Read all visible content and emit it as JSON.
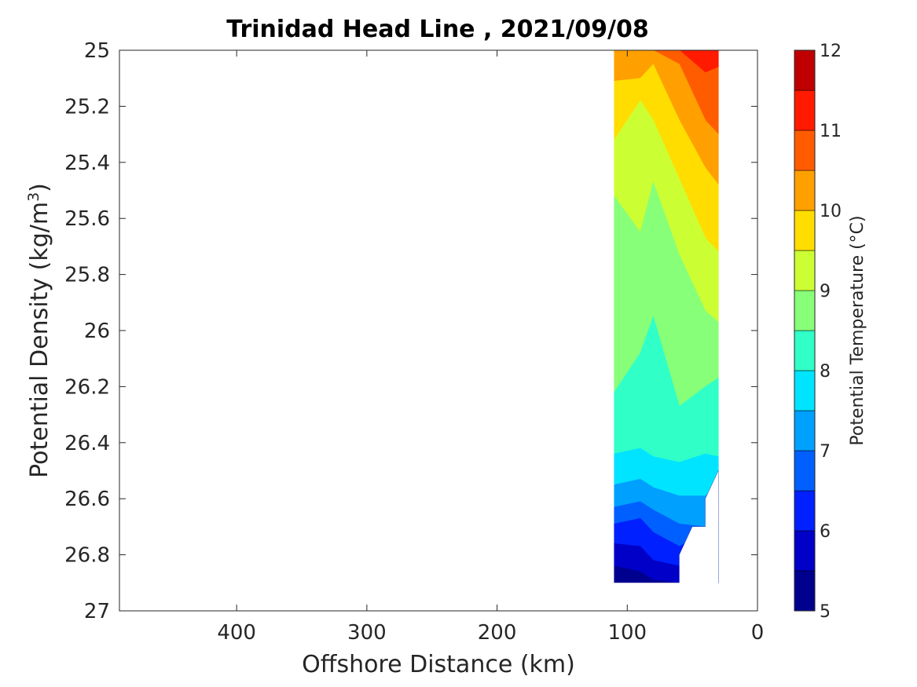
{
  "chart_data": {
    "type": "filled-contour",
    "title": "Trinidad Head Line , 2021/09/08",
    "xlabel": "Offshore Distance (km)",
    "ylabel": "Potential Density (kg/m",
    "ylabel_sup": "3",
    "ylabel_close": ")",
    "xlim": [
      490,
      0
    ],
    "ylim": [
      25,
      27
    ],
    "y_reversed": true,
    "x_ticks": [
      "400",
      "300",
      "200",
      "100",
      "0"
    ],
    "x_tick_values": [
      400,
      300,
      200,
      100,
      0
    ],
    "y_ticks": [
      "25",
      "25.2",
      "25.4",
      "25.6",
      "25.8",
      "26",
      "26.2",
      "26.4",
      "26.6",
      "26.8",
      "27"
    ],
    "y_tick_values": [
      25,
      25.2,
      25.4,
      25.6,
      25.8,
      26,
      26.2,
      26.4,
      26.6,
      26.8,
      27
    ],
    "colorbar": {
      "label": "Potential Temperature (°C)",
      "range": [
        5,
        12
      ],
      "step": 0.5,
      "ticks": [
        "5",
        "6",
        "7",
        "8",
        "9",
        "10",
        "11",
        "12"
      ],
      "tick_values": [
        5,
        6,
        7,
        8,
        9,
        10,
        11,
        12
      ],
      "colors": [
        "#00008f",
        "#0000c8",
        "#0020ff",
        "#0060ff",
        "#00a0ff",
        "#00e4ff",
        "#30ffc8",
        "#88ff78",
        "#ccff33",
        "#ffdd00",
        "#ffa000",
        "#ff5c00",
        "#ff1a00",
        "#c00000"
      ]
    },
    "stations_km": [
      110,
      90,
      80,
      60,
      40,
      30
    ],
    "isotherms": [
      {
        "level": 5.5,
        "y": [
          26.84,
          26.86,
          26.89,
          26.9,
          26.9,
          26.9
        ]
      },
      {
        "level": 6.0,
        "y": [
          26.76,
          26.77,
          26.82,
          26.84,
          26.9,
          26.9
        ]
      },
      {
        "level": 6.5,
        "y": [
          26.69,
          26.67,
          26.72,
          26.77,
          26.72,
          26.9
        ]
      },
      {
        "level": 7.0,
        "y": [
          26.63,
          26.61,
          26.64,
          26.69,
          26.7,
          26.9
        ]
      },
      {
        "level": 7.5,
        "y": [
          26.55,
          26.53,
          26.56,
          26.59,
          26.59,
          26.55
        ]
      },
      {
        "level": 8.0,
        "y": [
          26.44,
          26.42,
          26.45,
          26.47,
          26.44,
          26.45
        ]
      },
      {
        "level": 8.5,
        "y": [
          26.22,
          26.08,
          25.95,
          26.27,
          26.2,
          26.17
        ]
      },
      {
        "level": 9.0,
        "y": [
          25.52,
          25.65,
          25.47,
          25.73,
          25.93,
          25.97
        ]
      },
      {
        "level": 9.5,
        "y": [
          25.32,
          25.18,
          25.25,
          25.46,
          25.67,
          25.72
        ]
      },
      {
        "level": 10.0,
        "y": [
          25.11,
          25.1,
          25.05,
          25.25,
          25.42,
          25.48
        ]
      },
      {
        "level": 10.5,
        "y": [
          25.0,
          25.0,
          25.0,
          25.05,
          25.25,
          25.3
        ]
      },
      {
        "level": 11.0,
        "y": [
          25.0,
          25.0,
          25.0,
          25.0,
          25.08,
          25.06
        ]
      }
    ],
    "data_bottom": [
      {
        "x": 110,
        "y": 26.9
      },
      {
        "x": 60,
        "y": 26.9
      },
      {
        "x": 60,
        "y": 26.8
      },
      {
        "x": 50,
        "y": 26.7
      },
      {
        "x": 40,
        "y": 26.7
      },
      {
        "x": 40,
        "y": 26.6
      },
      {
        "x": 30,
        "y": 26.5
      }
    ]
  }
}
